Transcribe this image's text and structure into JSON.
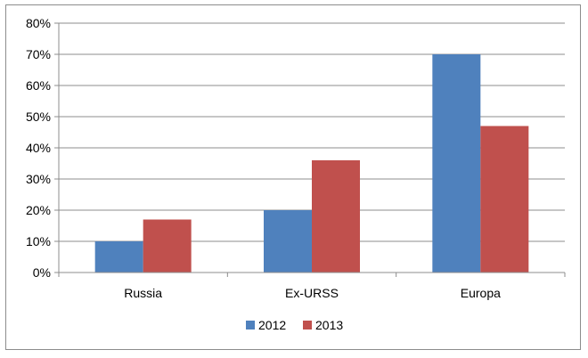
{
  "chart_data": {
    "type": "bar",
    "title": "",
    "xlabel": "",
    "ylabel": "",
    "categories": [
      "Russia",
      "Ex-URSS",
      "Europa"
    ],
    "series": [
      {
        "name": "2012",
        "color": "#4f81bd",
        "values": [
          10,
          20,
          70
        ]
      },
      {
        "name": "2013",
        "color": "#c0504d",
        "values": [
          17,
          36,
          47
        ]
      }
    ],
    "ylim": [
      0,
      80
    ],
    "yticks": [
      "0%",
      "10%",
      "20%",
      "30%",
      "40%",
      "50%",
      "60%",
      "70%",
      "80%"
    ],
    "grid": true,
    "legend_position": "bottom"
  }
}
